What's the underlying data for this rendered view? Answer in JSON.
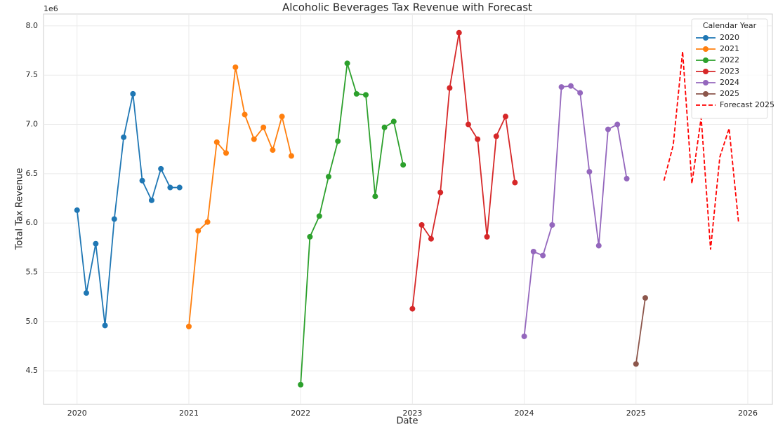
{
  "chart_data": {
    "type": "line",
    "title": "Alcoholic Beverages Tax Revenue with Forecast",
    "x_label": "Date",
    "y_label": "Total Tax Revenue",
    "y_offset": "1e6",
    "legend_title": "Calendar Year",
    "legend": "upper right",
    "grid": true,
    "xlim": [
      2019.7,
      2026.22
    ],
    "ylim": [
      4.16,
      8.12
    ],
    "xticks": [
      2020,
      2021,
      2022,
      2023,
      2024,
      2025,
      2026
    ],
    "yticks": [
      4.5,
      {
        "value": 5,
        "label": "5.0"
      },
      5.5,
      {
        "value": 6,
        "label": "6.0"
      },
      6.5,
      {
        "value": 7,
        "label": "7.0"
      },
      7.5,
      {
        "value": 8,
        "label": "8.0"
      }
    ],
    "series": [
      {
        "name": "2020",
        "color": "#1f77b4",
        "marker": true,
        "x": [
          2020.0,
          2020.083,
          2020.167,
          2020.25,
          2020.333,
          2020.417,
          2020.5,
          2020.583,
          2020.667,
          2020.75,
          2020.833,
          2020.917
        ],
        "values": [
          6.13,
          5.29,
          5.79,
          4.96,
          6.04,
          6.87,
          7.31,
          6.43,
          6.23,
          6.55,
          6.36,
          6.36
        ]
      },
      {
        "name": "2021",
        "color": "#ff7f0e",
        "marker": true,
        "x": [
          2021.0,
          2021.083,
          2021.167,
          2021.25,
          2021.333,
          2021.417,
          2021.5,
          2021.583,
          2021.667,
          2021.75,
          2021.833,
          2021.917
        ],
        "values": [
          4.95,
          5.92,
          6.01,
          6.82,
          6.71,
          7.58,
          7.1,
          6.85,
          6.97,
          6.74,
          7.08,
          6.68
        ]
      },
      {
        "name": "2022",
        "color": "#2ca02c",
        "marker": true,
        "x": [
          2022.0,
          2022.083,
          2022.167,
          2022.25,
          2022.333,
          2022.417,
          2022.5,
          2022.583,
          2022.667,
          2022.75,
          2022.833,
          2022.917
        ],
        "values": [
          4.36,
          5.86,
          6.07,
          6.47,
          6.83,
          7.62,
          7.31,
          7.3,
          6.27,
          6.97,
          7.03,
          6.59
        ]
      },
      {
        "name": "2023",
        "color": "#d62728",
        "marker": true,
        "x": [
          2023.0,
          2023.083,
          2023.167,
          2023.25,
          2023.333,
          2023.417,
          2023.5,
          2023.583,
          2023.667,
          2023.75,
          2023.833,
          2023.917
        ],
        "values": [
          5.13,
          5.98,
          5.84,
          6.31,
          7.37,
          7.93,
          7.0,
          6.85,
          5.86,
          6.88,
          7.08,
          6.41
        ]
      },
      {
        "name": "2024",
        "color": "#9467bd",
        "marker": true,
        "x": [
          2024.0,
          2024.083,
          2024.167,
          2024.25,
          2024.333,
          2024.417,
          2024.5,
          2024.583,
          2024.667,
          2024.75,
          2024.833,
          2024.917
        ],
        "values": [
          4.85,
          5.71,
          5.67,
          5.98,
          7.38,
          7.39,
          7.32,
          6.52,
          5.77,
          6.95,
          7.0,
          6.45
        ]
      },
      {
        "name": "2025",
        "color": "#8c564b",
        "marker": true,
        "x": [
          2025.0,
          2025.083
        ],
        "values": [
          4.57,
          5.24
        ]
      },
      {
        "name": "Forecast 2025",
        "color": "#ff0000",
        "marker": false,
        "dash": true,
        "x": [
          2025.25,
          2025.333,
          2025.417,
          2025.5,
          2025.583,
          2025.667,
          2025.75,
          2025.833,
          2025.917
        ],
        "values": [
          6.43,
          6.79,
          7.74,
          6.4,
          7.07,
          5.73,
          6.67,
          6.96,
          6.01
        ]
      }
    ]
  }
}
